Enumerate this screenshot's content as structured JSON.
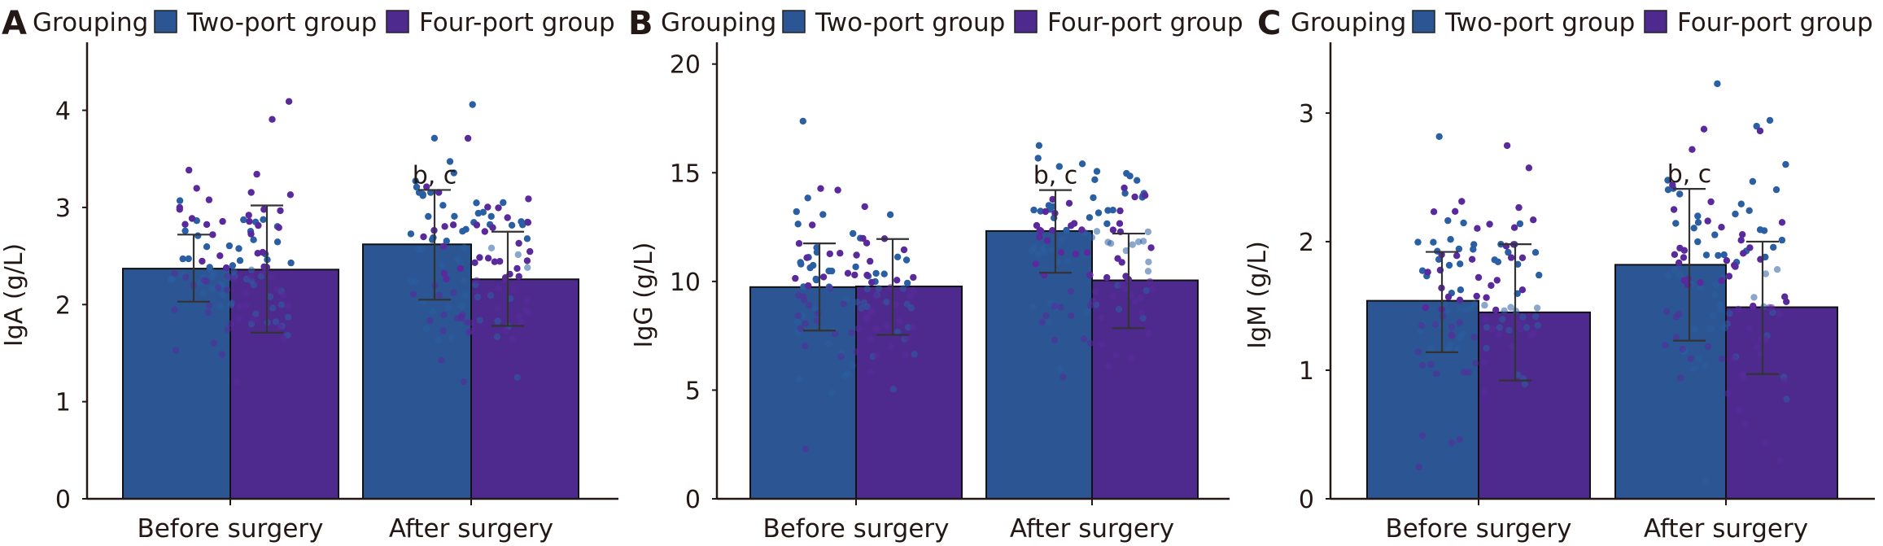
{
  "chart_data": [
    {
      "type": "bar",
      "panel": "A",
      "legend_title": "Grouping",
      "legend_placement": "top",
      "categories": [
        "Before surgery",
        "After surgery"
      ],
      "ylabel": "IgA (g/L)",
      "xlabel": "",
      "ylim": [
        0,
        4.7
      ],
      "yticks": [
        0,
        1,
        2,
        3,
        4
      ],
      "series": [
        {
          "name": "Two-port group",
          "values": [
            2.37,
            2.62
          ],
          "error_low": [
            2.03,
            2.05
          ],
          "error_high": [
            2.72,
            3.18
          ]
        },
        {
          "name": "Four-port group",
          "values": [
            2.36,
            2.26
          ],
          "error_low": [
            1.71,
            1.78
          ],
          "error_high": [
            3.02,
            2.75
          ]
        }
      ],
      "annotations": [
        {
          "category": "After surgery",
          "series": "Two-port group",
          "text": "b, c"
        }
      ],
      "scatter_points_per_bar": 60
    },
    {
      "type": "bar",
      "panel": "B",
      "legend_title": "Grouping",
      "legend_placement": "top",
      "categories": [
        "Before surgery",
        "After surgery"
      ],
      "ylabel": "IgG (g/L)",
      "xlabel": "",
      "ylim": [
        0,
        21
      ],
      "yticks": [
        0,
        5,
        10,
        15,
        20
      ],
      "series": [
        {
          "name": "Two-port group",
          "values": [
            9.74,
            12.32
          ],
          "error_low": [
            7.74,
            10.4
          ],
          "error_high": [
            11.75,
            14.2
          ]
        },
        {
          "name": "Four-port group",
          "values": [
            9.77,
            10.05
          ],
          "error_low": [
            7.54,
            7.85
          ],
          "error_high": [
            11.95,
            12.2
          ]
        }
      ],
      "annotations": [
        {
          "category": "After surgery",
          "series": "Two-port group",
          "text": "b, c"
        }
      ],
      "scatter_points_per_bar": 60
    },
    {
      "type": "bar",
      "panel": "C",
      "legend_title": "Grouping",
      "legend_placement": "top",
      "categories": [
        "Before surgery",
        "After surgery"
      ],
      "ylabel": "IgM (g/L)",
      "xlabel": "",
      "ylim": [
        0,
        3.55
      ],
      "yticks": [
        0,
        1,
        2,
        3
      ],
      "series": [
        {
          "name": "Two-port group",
          "values": [
            1.54,
            1.82
          ],
          "error_low": [
            1.14,
            1.23
          ],
          "error_high": [
            1.92,
            2.41
          ]
        },
        {
          "name": "Four-port group",
          "values": [
            1.45,
            1.49
          ],
          "error_low": [
            0.92,
            0.97
          ],
          "error_high": [
            1.98,
            2.0
          ]
        }
      ],
      "annotations": [
        {
          "category": "After surgery",
          "series": "Two-port group",
          "text": "b, c"
        }
      ],
      "scatter_points_per_bar": 60
    }
  ],
  "colors": {
    "two_port_bar": "#2c5593",
    "four_port_bar": "#4e2a8e",
    "two_port_dot": "#2b5fa3",
    "four_port_dot": "#5a2a9c",
    "text": "#231815"
  }
}
